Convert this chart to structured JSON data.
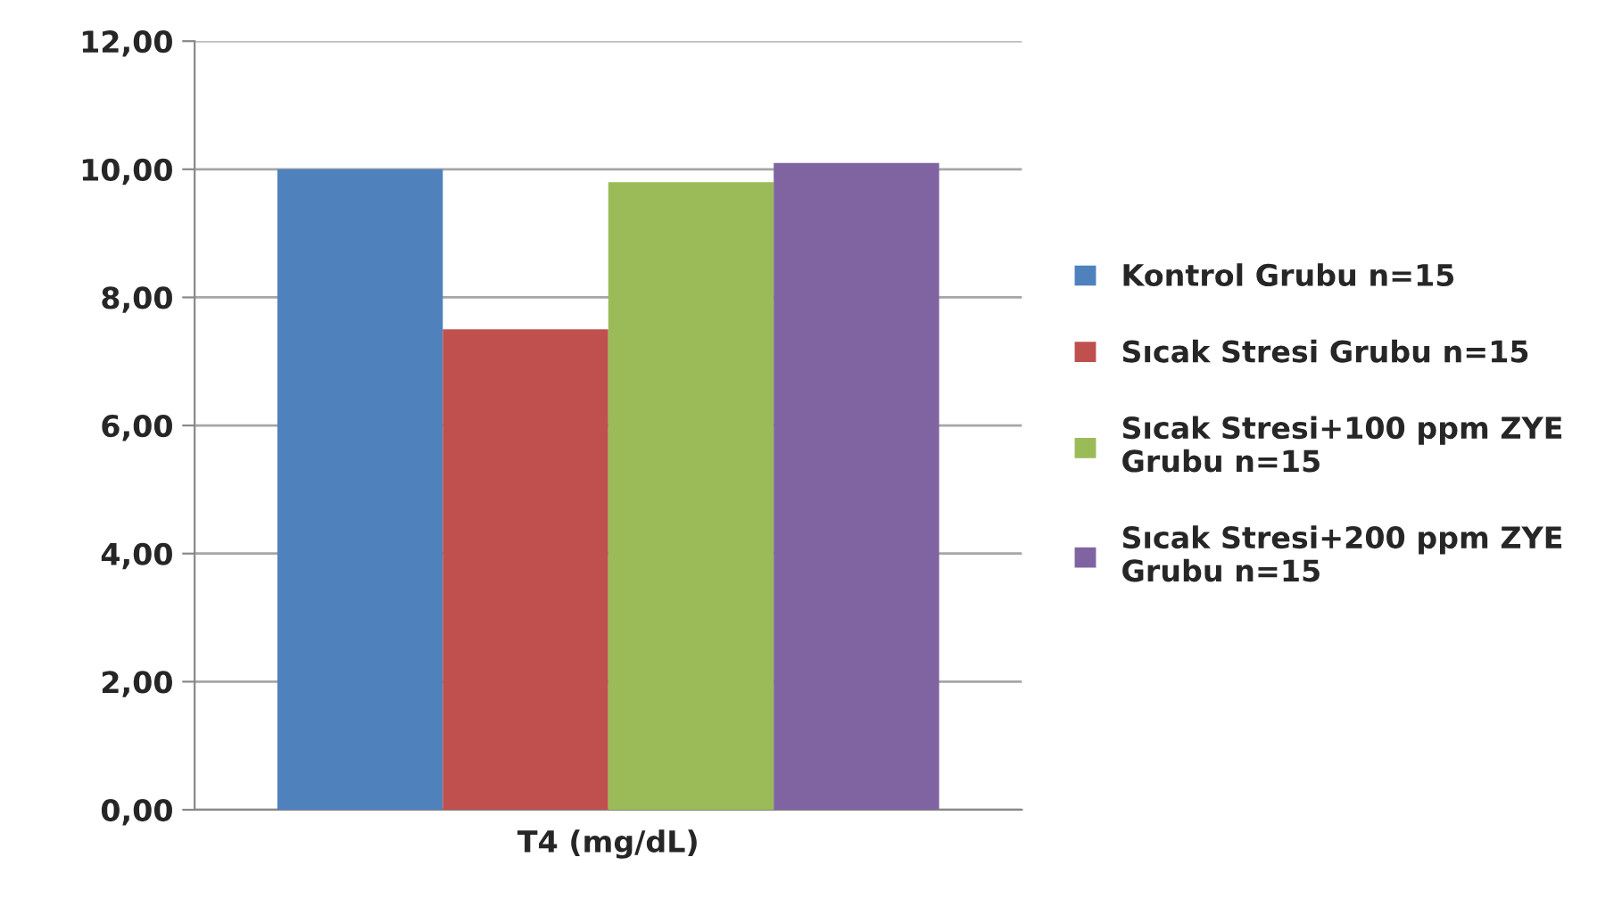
{
  "chart_data": {
    "type": "bar",
    "categories": [
      "T4 (mg/dL)"
    ],
    "series": [
      {
        "name": "Kontrol Grubu n=15",
        "color": "#4f81bd",
        "values": [
          10.0
        ]
      },
      {
        "name": "Sıcak Stresi Grubu n=15",
        "color": "#c0504d",
        "values": [
          7.5
        ]
      },
      {
        "name": "Sıcak Stresi+100 ppm ZYE\nGrubu n=15",
        "color": "#9bbb59",
        "values": [
          9.8
        ]
      },
      {
        "name": "Sıcak Stresi+200 ppm ZYE\nGrubu n=15",
        "color": "#8064a2",
        "values": [
          10.1
        ]
      }
    ],
    "ylim": [
      0,
      12
    ],
    "yticks": [
      {
        "value": 0,
        "label": "0,00"
      },
      {
        "value": 2,
        "label": "2,00"
      },
      {
        "value": 4,
        "label": "4,00"
      },
      {
        "value": 6,
        "label": "6,00"
      },
      {
        "value": 8,
        "label": "8,00"
      },
      {
        "value": 10,
        "label": "10,00"
      },
      {
        "value": 12,
        "label": "12,00"
      }
    ],
    "grid": "y",
    "legend": "right"
  }
}
